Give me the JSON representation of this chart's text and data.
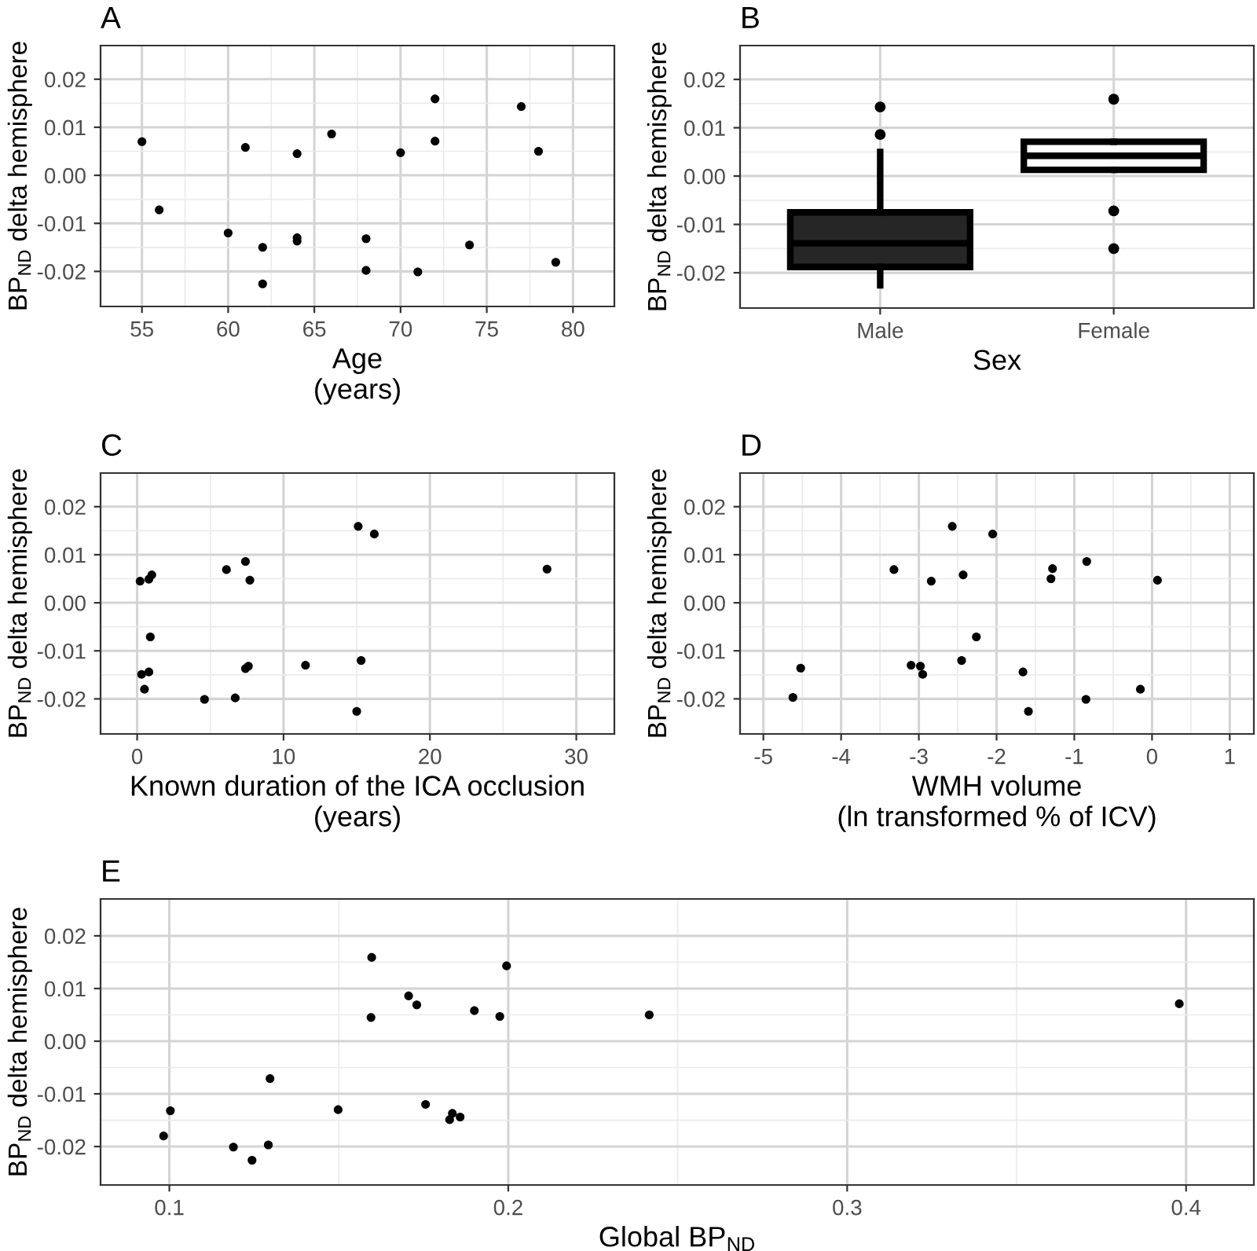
{
  "chart_data": [
    {
      "type": "scatter",
      "title": "A",
      "xlabel": "Age\n(years)",
      "ylabel": "BP$_{ND}$ delta hemisphere",
      "marker": "circle",
      "grid": true,
      "xlim": [
        52.6,
        82.4
      ],
      "xticks": [
        55,
        60,
        65,
        70,
        75,
        80
      ],
      "ylim": [
        -0.0273,
        0.027
      ],
      "yticks": [
        {
          "value": -0.02,
          "label": "-0.02"
        },
        {
          "value": -0.01,
          "label": "-0.01"
        },
        {
          "value": 0.0,
          "label": "0.00"
        },
        {
          "value": 0.01,
          "label": "0.01"
        },
        {
          "value": 0.02,
          "label": "0.02"
        }
      ],
      "series": [
        {
          "color": "#000000",
          "x": [
            55,
            56,
            60,
            61,
            62,
            62,
            64,
            64,
            64,
            66,
            68,
            68,
            70,
            71,
            72,
            72,
            74,
            77,
            78,
            79
          ],
          "values": [
            0.007,
            -0.0072,
            -0.012,
            0.0058,
            -0.015,
            -0.0226,
            0.0045,
            -0.013,
            -0.0137,
            0.0086,
            -0.0132,
            -0.0198,
            0.0047,
            -0.0201,
            0.0159,
            0.0071,
            -0.0145,
            0.0143,
            0.005,
            -0.0181
          ]
        }
      ]
    },
    {
      "type": "box",
      "title": "B",
      "xlabel": "Sex",
      "ylabel": "BP$_{ND}$ delta hemisphere",
      "grid": true,
      "categories": [
        "Male",
        "Female"
      ],
      "colors": [
        "#262626",
        "#ffffff"
      ],
      "ylim": [
        -0.0273,
        0.027
      ],
      "yticks": [
        {
          "value": -0.02,
          "label": "-0.02"
        },
        {
          "value": -0.01,
          "label": "-0.01"
        },
        {
          "value": 0.0,
          "label": "0.00"
        },
        {
          "value": 0.01,
          "label": "0.01"
        },
        {
          "value": 0.02,
          "label": "0.02"
        }
      ],
      "boxes": [
        {
          "low": -0.0226,
          "q1": -0.0188,
          "median": -0.0139,
          "q3": -0.0075,
          "high": 0.005,
          "outliers": [
            0.0143,
            0.0086
          ]
        },
        {
          "low": 0.0013,
          "q1": 0.0013,
          "median": 0.0042,
          "q3": 0.0071,
          "high": 0.0071,
          "outliers": [
            0.0159,
            -0.0072,
            -0.015
          ]
        }
      ]
    },
    {
      "type": "scatter",
      "title": "C",
      "xlabel": "Known duration of the ICA occlusion\n(years)",
      "ylabel": "BP$_{ND}$ delta hemisphere",
      "marker": "circle",
      "grid": true,
      "xlim": [
        -2.5,
        32.6
      ],
      "xticks": [
        0,
        10,
        20,
        30
      ],
      "ylim": [
        -0.0273,
        0.027
      ],
      "yticks": [
        {
          "value": -0.02,
          "label": "-0.02"
        },
        {
          "value": -0.01,
          "label": "-0.01"
        },
        {
          "value": 0.0,
          "label": "0.00"
        },
        {
          "value": 0.01,
          "label": "0.01"
        },
        {
          "value": 0.02,
          "label": "0.02"
        }
      ],
      "series": [
        {
          "color": "#000000",
          "x": [
            0.2,
            0.8,
            1.0,
            0.9,
            0.3,
            0.8,
            0.5,
            4.6,
            6.1,
            7.4,
            7.7,
            6.7,
            7.4,
            7.6,
            11.5,
            15.1,
            16.2,
            15.3,
            15.0,
            28.0
          ],
          "values": [
            0.0045,
            0.0049,
            0.0058,
            -0.0071,
            -0.0149,
            -0.0144,
            -0.018,
            -0.0201,
            0.0069,
            0.0086,
            0.0047,
            -0.0198,
            -0.0137,
            -0.0132,
            -0.013,
            0.0159,
            0.0143,
            -0.012,
            -0.0226,
            0.007
          ]
        }
      ]
    },
    {
      "type": "scatter",
      "title": "D",
      "xlabel": "WMH volume\n(ln transformed % of ICV)",
      "ylabel": "BP$_{ND}$ delta hemisphere",
      "marker": "circle",
      "grid": true,
      "xlim": [
        -5.3,
        1.31
      ],
      "xticks": [
        {
          "value": -5,
          "label": "-5"
        },
        {
          "value": -4,
          "label": "-4"
        },
        {
          "value": -3,
          "label": "-3"
        },
        {
          "value": -2,
          "label": "-2"
        },
        {
          "value": -1,
          "label": "-1"
        },
        0,
        1
      ],
      "ylim": [
        -0.0273,
        0.027
      ],
      "yticks": [
        {
          "value": -0.02,
          "label": "-0.02"
        },
        {
          "value": -0.01,
          "label": "-0.01"
        },
        {
          "value": 0.0,
          "label": "0.00"
        },
        {
          "value": 0.01,
          "label": "0.01"
        },
        {
          "value": 0.02,
          "label": "0.02"
        }
      ],
      "series": [
        {
          "color": "#000000",
          "x": [
            -3.32,
            -2.57,
            -2.05,
            -2.84,
            -2.43,
            -1.28,
            -1.3,
            -0.84,
            0.07,
            -2.26,
            -4.52,
            -4.62,
            -3.1,
            -2.98,
            -2.95,
            -2.45,
            -1.66,
            -1.59,
            -0.85,
            -0.15
          ],
          "values": [
            0.0069,
            0.0159,
            0.0143,
            0.0045,
            0.0058,
            0.0071,
            0.005,
            0.0086,
            0.0047,
            -0.0071,
            -0.0136,
            -0.0197,
            -0.013,
            -0.0132,
            -0.0149,
            -0.012,
            -0.0144,
            -0.0226,
            -0.0201,
            -0.018
          ]
        }
      ]
    },
    {
      "type": "scatter",
      "title": "E",
      "xlabel": "Global BP$_{ND}$",
      "ylabel": "BP$_{ND}$ delta hemisphere",
      "marker": "circle",
      "grid": true,
      "xlim": [
        0.0797,
        0.42
      ],
      "xticks": [
        0.1,
        0.2,
        0.3,
        0.4
      ],
      "ylim": [
        -0.0273,
        0.027
      ],
      "yticks": [
        {
          "value": -0.02,
          "label": "-0.02"
        },
        {
          "value": -0.01,
          "label": "-0.01"
        },
        {
          "value": 0.0,
          "label": "0.00"
        },
        {
          "value": 0.01,
          "label": "0.01"
        },
        {
          "value": 0.02,
          "label": "0.02"
        }
      ],
      "series": [
        {
          "color": "#000000",
          "x": [
            0.0983,
            0.1003,
            0.1189,
            0.1244,
            0.1292,
            0.1297,
            0.1498,
            0.1597,
            0.1595,
            0.1706,
            0.173,
            0.1756,
            0.1827,
            0.1835,
            0.1858,
            0.19,
            0.1975,
            0.1995,
            0.2416,
            0.398
          ],
          "values": [
            -0.018,
            -0.0132,
            -0.0201,
            -0.0226,
            -0.0197,
            -0.0071,
            -0.013,
            0.0159,
            0.0045,
            0.0086,
            0.0069,
            -0.012,
            -0.0149,
            -0.0137,
            -0.0144,
            0.0058,
            0.0047,
            0.0143,
            0.005,
            0.0071
          ]
        }
      ]
    }
  ]
}
